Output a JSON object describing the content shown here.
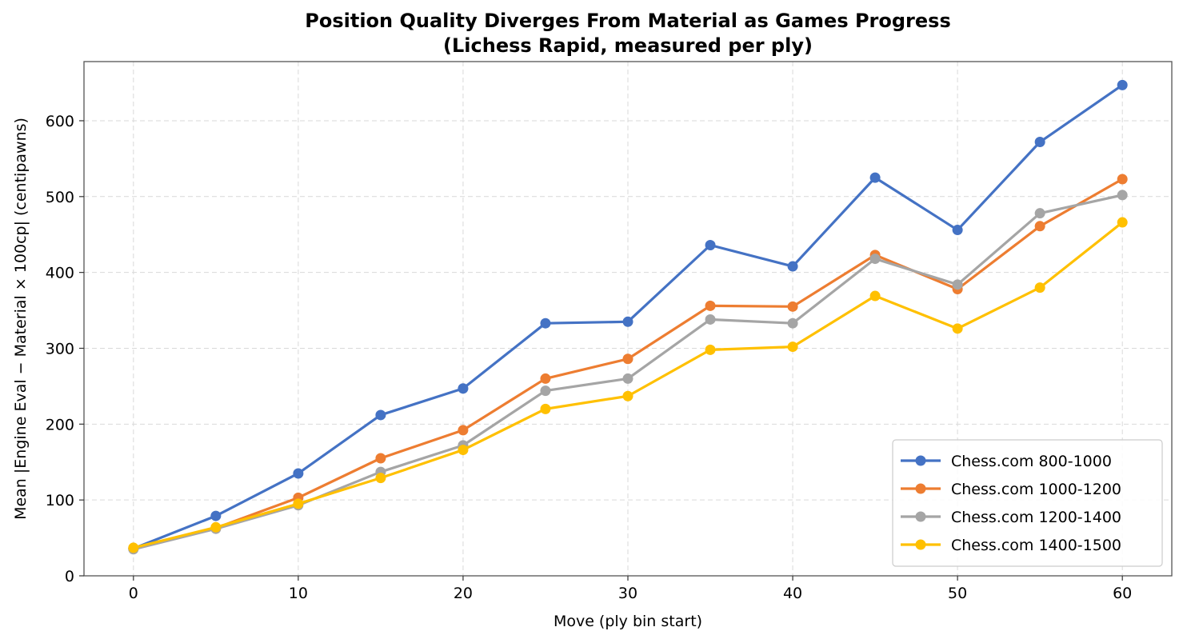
{
  "chart_data": {
    "type": "line",
    "title_lines": [
      "Position Quality Diverges From Material as Games Progress",
      "(Lichess Rapid, measured per ply)"
    ],
    "xlabel": "Move (ply bin start)",
    "ylabel": "Mean |Engine Eval − Material × 100cp|  (centipawns)",
    "x": [
      0,
      5,
      10,
      15,
      20,
      25,
      30,
      35,
      40,
      45,
      50,
      55,
      60
    ],
    "xlim": [
      -3,
      63
    ],
    "ylim": [
      0,
      678
    ],
    "xticks": [
      0,
      10,
      20,
      30,
      40,
      50,
      60
    ],
    "yticks": [
      0,
      100,
      200,
      300,
      400,
      500,
      600
    ],
    "grid": true,
    "legend_position": "lower-right",
    "series": [
      {
        "name": "Chess.com 800-1000",
        "color": "#4472c4",
        "values": [
          36,
          79,
          135,
          212,
          247,
          333,
          335,
          436,
          408,
          525,
          456,
          572,
          647
        ]
      },
      {
        "name": "Chess.com 1000-1200",
        "color": "#ed7d31",
        "values": [
          36,
          63,
          103,
          155,
          192,
          260,
          286,
          356,
          355,
          423,
          378,
          461,
          523
        ]
      },
      {
        "name": "Chess.com 1200-1400",
        "color": "#a5a5a5",
        "values": [
          35,
          62,
          93,
          137,
          172,
          244,
          260,
          338,
          333,
          418,
          384,
          478,
          502
        ]
      },
      {
        "name": "Chess.com 1400-1500",
        "color": "#ffc000",
        "values": [
          37,
          64,
          95,
          129,
          166,
          220,
          237,
          298,
          302,
          369,
          326,
          380,
          466
        ]
      }
    ]
  }
}
